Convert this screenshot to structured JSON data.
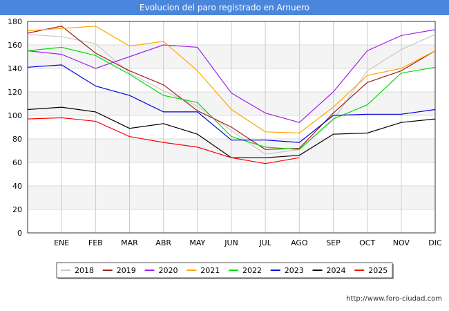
{
  "header": {
    "title": "Evolucion del paro registrado en Arnuero"
  },
  "footer": {
    "url": "http://www.foro-ciudad.com"
  },
  "chart_data": {
    "type": "line",
    "title": "Evolucion del paro registrado en Arnuero",
    "categories": [
      "",
      "ENE",
      "FEB",
      "MAR",
      "ABR",
      "MAY",
      "JUN",
      "JUL",
      "AGO",
      "SEP",
      "OCT",
      "NOV",
      "DIC"
    ],
    "ylim": [
      0,
      180
    ],
    "yticks": [
      0,
      20,
      40,
      60,
      80,
      100,
      120,
      140,
      160,
      180
    ],
    "grid": true,
    "legend": "bottom",
    "series": [
      {
        "name": "2018",
        "color": "#c8c8c8",
        "values": [
          169,
          167,
          161,
          136,
          121,
          108,
          87,
          67,
          71,
          96,
          138,
          156,
          169
        ]
      },
      {
        "name": "2019",
        "color": "#a02020",
        "values": [
          170,
          176,
          153,
          138,
          126,
          104,
          90,
          71,
          72,
          102,
          128,
          138,
          155
        ]
      },
      {
        "name": "2020",
        "color": "#a020f0",
        "values": [
          155,
          152,
          140,
          150,
          160,
          158,
          119,
          102,
          94,
          120,
          155,
          168,
          173
        ]
      },
      {
        "name": "2021",
        "color": "#ffa500",
        "values": [
          172,
          174,
          176,
          159,
          163,
          138,
          105,
          86,
          85,
          107,
          134,
          140,
          155
        ]
      },
      {
        "name": "2022",
        "color": "#00dd00",
        "values": [
          155,
          158,
          151,
          135,
          117,
          111,
          82,
          73,
          71,
          97,
          109,
          136,
          141
        ]
      },
      {
        "name": "2023",
        "color": "#0000dd",
        "values": [
          141,
          143,
          125,
          117,
          103,
          103,
          79,
          79,
          77,
          100,
          101,
          101,
          105
        ]
      },
      {
        "name": "2024",
        "color": "#000000",
        "values": [
          105,
          107,
          103,
          89,
          93,
          84,
          64,
          64,
          66,
          84,
          85,
          94,
          97
        ]
      },
      {
        "name": "2025",
        "color": "#ff0000",
        "values": [
          97,
          98,
          95,
          82,
          77,
          73,
          64,
          59,
          64,
          null,
          null,
          null,
          null
        ]
      }
    ]
  }
}
